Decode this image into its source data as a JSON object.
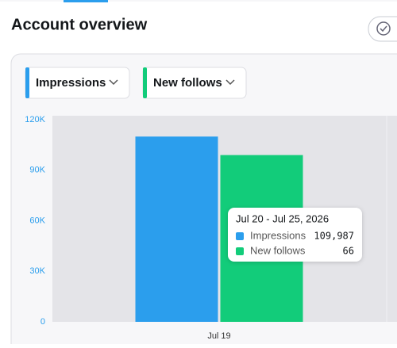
{
  "header": {
    "title": "Account overview"
  },
  "chart_data": {
    "type": "bar",
    "categories": [
      "Jul 19"
    ],
    "series": [
      {
        "name": "Impressions",
        "color": "#2b9eed",
        "values": [
          109987
        ],
        "value_labels": [
          "109,987"
        ]
      },
      {
        "name": "New follows",
        "color": "#12cc7a",
        "values": [
          66
        ],
        "axis": "y2"
      }
    ],
    "ylim": [
      0,
      120000
    ],
    "yticks": [
      {
        "value": 0,
        "label": "0"
      },
      {
        "value": 30000,
        "label": "30K"
      },
      {
        "value": 60000,
        "label": "60K"
      },
      {
        "value": 90000,
        "label": "90K"
      },
      {
        "value": 120000,
        "label": "120K"
      }
    ],
    "y2lim": [
      0,
      80
    ],
    "grid": false,
    "tooltip": {
      "title": "Jul 20 - Jul 25, 2026"
    }
  }
}
